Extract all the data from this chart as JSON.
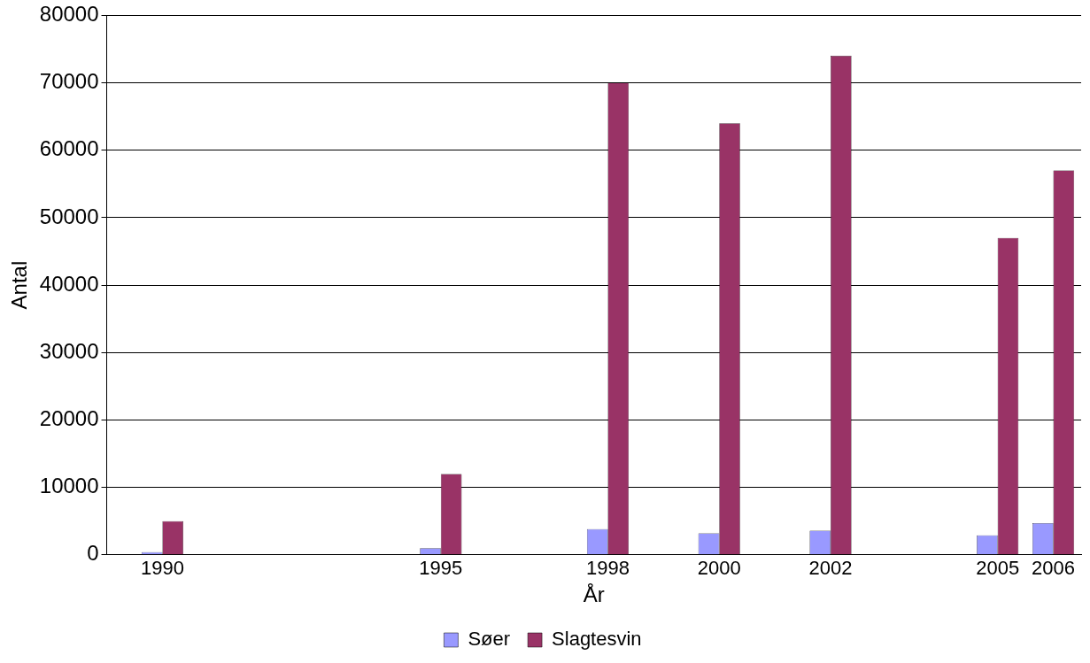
{
  "chart_data": {
    "type": "bar",
    "xlabel": "År",
    "ylabel": "Antal",
    "x": [
      1990,
      1995,
      1998,
      2000,
      2002,
      2005,
      2006
    ],
    "xlim": [
      1989,
      2006.5
    ],
    "xticks": [
      1990,
      1995,
      1998,
      2000,
      2002,
      2005,
      2006
    ],
    "ylim": [
      0,
      80000
    ],
    "yticks": [
      0,
      10000,
      20000,
      30000,
      40000,
      50000,
      60000,
      70000,
      80000
    ],
    "series": [
      {
        "name": "Søer",
        "color": "#9999ff",
        "values": [
          400,
          1000,
          3800,
          3200,
          3600,
          2900,
          4700
        ]
      },
      {
        "name": "Slagtesvin",
        "color": "#993366",
        "values": [
          5000,
          12000,
          70000,
          64000,
          74000,
          47000,
          57000
        ]
      }
    ],
    "grid": "y",
    "legend": "bottom"
  }
}
